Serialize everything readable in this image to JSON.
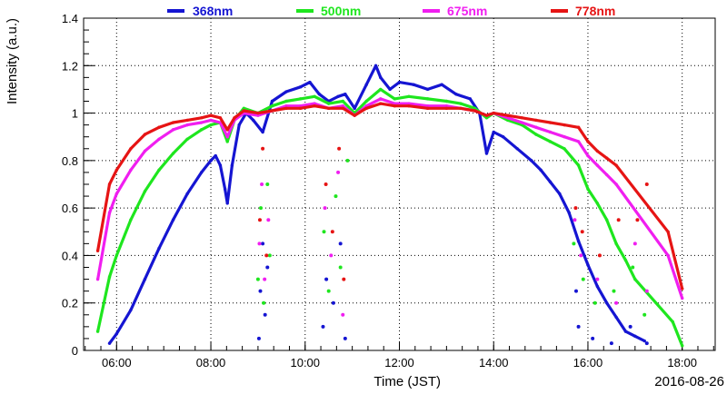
{
  "chart_data": {
    "type": "scatter",
    "title": "",
    "xlabel": "Time (JST)",
    "ylabel": "Intensity (a.u.)",
    "date_label": "2016-08-26",
    "x_unit": "hours (JST)",
    "xlim": [
      5.3,
      18.7
    ],
    "ylim": [
      0,
      1.4
    ],
    "x_ticks": [
      {
        "value": 6,
        "label": "06:00"
      },
      {
        "value": 8,
        "label": "08:00"
      },
      {
        "value": 10,
        "label": "10:00"
      },
      {
        "value": 12,
        "label": "12:00"
      },
      {
        "value": 14,
        "label": "14:00"
      },
      {
        "value": 16,
        "label": "16:00"
      },
      {
        "value": 18,
        "label": "18:00"
      }
    ],
    "y_ticks": [
      {
        "value": 0,
        "label": "0"
      },
      {
        "value": 0.2,
        "label": "0.2"
      },
      {
        "value": 0.4,
        "label": "0.4"
      },
      {
        "value": 0.6,
        "label": "0.6"
      },
      {
        "value": 0.8,
        "label": "0.8"
      },
      {
        "value": 1,
        "label": "1"
      },
      {
        "value": 1.2,
        "label": "1.2"
      },
      {
        "value": 1.4,
        "label": "1.4"
      }
    ],
    "grid": true,
    "legend_position": "top",
    "series": [
      {
        "name": "368nm",
        "color": "#1515d2",
        "points": [
          [
            5.85,
            0.03
          ],
          [
            6.0,
            0.07
          ],
          [
            6.3,
            0.17
          ],
          [
            6.6,
            0.3
          ],
          [
            6.9,
            0.43
          ],
          [
            7.2,
            0.55
          ],
          [
            7.5,
            0.66
          ],
          [
            7.8,
            0.75
          ],
          [
            8.0,
            0.8
          ],
          [
            8.1,
            0.82
          ],
          [
            8.2,
            0.78
          ],
          [
            8.3,
            0.68
          ],
          [
            8.35,
            0.62
          ],
          [
            8.45,
            0.78
          ],
          [
            8.6,
            0.95
          ],
          [
            8.75,
            1.0
          ],
          [
            8.9,
            0.97
          ],
          [
            9.1,
            0.92
          ],
          [
            9.3,
            1.05
          ],
          [
            9.6,
            1.09
          ],
          [
            9.9,
            1.11
          ],
          [
            10.1,
            1.13
          ],
          [
            10.3,
            1.08
          ],
          [
            10.5,
            1.05
          ],
          [
            10.7,
            1.07
          ],
          [
            10.85,
            1.08
          ],
          [
            11.05,
            1.02
          ],
          [
            11.3,
            1.12
          ],
          [
            11.5,
            1.2
          ],
          [
            11.6,
            1.15
          ],
          [
            11.8,
            1.1
          ],
          [
            12.0,
            1.13
          ],
          [
            12.3,
            1.12
          ],
          [
            12.6,
            1.1
          ],
          [
            12.9,
            1.12
          ],
          [
            13.2,
            1.08
          ],
          [
            13.5,
            1.06
          ],
          [
            13.7,
            1.0
          ],
          [
            13.85,
            0.83
          ],
          [
            14.0,
            0.92
          ],
          [
            14.2,
            0.9
          ],
          [
            14.5,
            0.85
          ],
          [
            14.8,
            0.8
          ],
          [
            15.0,
            0.76
          ],
          [
            15.2,
            0.71
          ],
          [
            15.4,
            0.66
          ],
          [
            15.6,
            0.58
          ],
          [
            15.8,
            0.46
          ],
          [
            16.0,
            0.36
          ],
          [
            16.2,
            0.27
          ],
          [
            16.4,
            0.2
          ],
          [
            16.6,
            0.14
          ],
          [
            16.8,
            0.08
          ],
          [
            17.0,
            0.06
          ],
          [
            17.2,
            0.04
          ]
        ]
      },
      {
        "name": "500nm",
        "color": "#1ee61e",
        "points": [
          [
            5.6,
            0.08
          ],
          [
            5.85,
            0.31
          ],
          [
            6.0,
            0.4
          ],
          [
            6.3,
            0.55
          ],
          [
            6.6,
            0.67
          ],
          [
            6.9,
            0.76
          ],
          [
            7.2,
            0.83
          ],
          [
            7.5,
            0.89
          ],
          [
            7.8,
            0.93
          ],
          [
            8.0,
            0.95
          ],
          [
            8.2,
            0.96
          ],
          [
            8.35,
            0.88
          ],
          [
            8.5,
            0.97
          ],
          [
            8.7,
            1.02
          ],
          [
            9.0,
            1.0
          ],
          [
            9.3,
            1.03
          ],
          [
            9.6,
            1.05
          ],
          [
            9.9,
            1.06
          ],
          [
            10.2,
            1.07
          ],
          [
            10.5,
            1.04
          ],
          [
            10.8,
            1.05
          ],
          [
            11.05,
            1.0
          ],
          [
            11.3,
            1.05
          ],
          [
            11.6,
            1.1
          ],
          [
            11.9,
            1.06
          ],
          [
            12.2,
            1.07
          ],
          [
            12.6,
            1.06
          ],
          [
            13.0,
            1.05
          ],
          [
            13.3,
            1.04
          ],
          [
            13.6,
            1.02
          ],
          [
            13.85,
            0.98
          ],
          [
            14.0,
            1.0
          ],
          [
            14.3,
            0.97
          ],
          [
            14.6,
            0.95
          ],
          [
            14.9,
            0.91
          ],
          [
            15.2,
            0.88
          ],
          [
            15.5,
            0.85
          ],
          [
            15.8,
            0.78
          ],
          [
            16.0,
            0.68
          ],
          [
            16.2,
            0.62
          ],
          [
            16.4,
            0.55
          ],
          [
            16.6,
            0.45
          ],
          [
            16.8,
            0.38
          ],
          [
            17.0,
            0.3
          ],
          [
            17.8,
            0.12
          ],
          [
            18.0,
            0.02
          ]
        ]
      },
      {
        "name": "675nm",
        "color": "#f01ef0",
        "points": [
          [
            5.6,
            0.3
          ],
          [
            5.85,
            0.58
          ],
          [
            6.0,
            0.66
          ],
          [
            6.3,
            0.76
          ],
          [
            6.6,
            0.84
          ],
          [
            6.9,
            0.89
          ],
          [
            7.2,
            0.93
          ],
          [
            7.5,
            0.95
          ],
          [
            7.8,
            0.96
          ],
          [
            8.0,
            0.97
          ],
          [
            8.2,
            0.96
          ],
          [
            8.35,
            0.9
          ],
          [
            8.5,
            0.97
          ],
          [
            8.7,
            1.0
          ],
          [
            9.0,
            0.99
          ],
          [
            9.3,
            1.01
          ],
          [
            9.6,
            1.03
          ],
          [
            9.9,
            1.03
          ],
          [
            10.2,
            1.04
          ],
          [
            10.5,
            1.02
          ],
          [
            10.8,
            1.03
          ],
          [
            11.05,
            0.99
          ],
          [
            11.3,
            1.03
          ],
          [
            11.6,
            1.06
          ],
          [
            11.9,
            1.04
          ],
          [
            12.2,
            1.04
          ],
          [
            12.6,
            1.03
          ],
          [
            13.0,
            1.03
          ],
          [
            13.3,
            1.02
          ],
          [
            13.6,
            1.01
          ],
          [
            13.85,
            0.99
          ],
          [
            14.0,
            1.0
          ],
          [
            14.3,
            0.98
          ],
          [
            14.6,
            0.96
          ],
          [
            14.9,
            0.94
          ],
          [
            15.2,
            0.92
          ],
          [
            15.5,
            0.9
          ],
          [
            15.8,
            0.88
          ],
          [
            16.0,
            0.82
          ],
          [
            16.2,
            0.78
          ],
          [
            16.4,
            0.74
          ],
          [
            16.6,
            0.7
          ],
          [
            17.7,
            0.4
          ],
          [
            18.0,
            0.22
          ]
        ]
      },
      {
        "name": "778nm",
        "color": "#e61414",
        "points": [
          [
            5.6,
            0.42
          ],
          [
            5.85,
            0.7
          ],
          [
            6.0,
            0.76
          ],
          [
            6.3,
            0.85
          ],
          [
            6.6,
            0.91
          ],
          [
            6.9,
            0.94
          ],
          [
            7.2,
            0.96
          ],
          [
            7.5,
            0.97
          ],
          [
            7.8,
            0.98
          ],
          [
            8.0,
            0.99
          ],
          [
            8.2,
            0.98
          ],
          [
            8.35,
            0.93
          ],
          [
            8.5,
            0.98
          ],
          [
            8.7,
            1.01
          ],
          [
            9.0,
            1.0
          ],
          [
            9.3,
            1.01
          ],
          [
            9.6,
            1.02
          ],
          [
            9.9,
            1.02
          ],
          [
            10.2,
            1.03
          ],
          [
            10.5,
            1.02
          ],
          [
            10.8,
            1.02
          ],
          [
            11.05,
            0.99
          ],
          [
            11.3,
            1.02
          ],
          [
            11.6,
            1.04
          ],
          [
            11.9,
            1.03
          ],
          [
            12.2,
            1.03
          ],
          [
            12.6,
            1.02
          ],
          [
            13.0,
            1.02
          ],
          [
            13.3,
            1.02
          ],
          [
            13.6,
            1.01
          ],
          [
            13.85,
            0.99
          ],
          [
            14.0,
            1.0
          ],
          [
            14.3,
            0.99
          ],
          [
            14.6,
            0.98
          ],
          [
            14.9,
            0.97
          ],
          [
            15.2,
            0.96
          ],
          [
            15.5,
            0.95
          ],
          [
            15.8,
            0.94
          ],
          [
            16.0,
            0.88
          ],
          [
            16.2,
            0.84
          ],
          [
            16.4,
            0.81
          ],
          [
            16.6,
            0.78
          ],
          [
            17.7,
            0.5
          ],
          [
            18.0,
            0.26
          ]
        ]
      }
    ],
    "scatter_dots": [
      {
        "series": "368nm",
        "points": [
          [
            9.02,
            0.05
          ],
          [
            9.05,
            0.25
          ],
          [
            9.1,
            0.45
          ],
          [
            9.15,
            0.15
          ],
          [
            9.2,
            0.35
          ],
          [
            10.38,
            0.1
          ],
          [
            10.45,
            0.3
          ],
          [
            10.6,
            0.2
          ],
          [
            10.75,
            0.45
          ],
          [
            10.85,
            0.05
          ],
          [
            15.75,
            0.25
          ],
          [
            15.8,
            0.1
          ],
          [
            16.1,
            0.05
          ],
          [
            16.5,
            0.03
          ],
          [
            16.9,
            0.1
          ],
          [
            17.25,
            0.03
          ]
        ]
      },
      {
        "series": "500nm",
        "points": [
          [
            9.0,
            0.3
          ],
          [
            9.06,
            0.6
          ],
          [
            9.12,
            0.2
          ],
          [
            9.2,
            0.7
          ],
          [
            9.25,
            0.4
          ],
          [
            10.4,
            0.5
          ],
          [
            10.5,
            0.25
          ],
          [
            10.65,
            0.65
          ],
          [
            10.75,
            0.35
          ],
          [
            10.9,
            0.8
          ],
          [
            15.7,
            0.45
          ],
          [
            15.9,
            0.3
          ],
          [
            16.15,
            0.2
          ],
          [
            16.55,
            0.25
          ],
          [
            16.95,
            0.35
          ],
          [
            17.2,
            0.15
          ]
        ]
      },
      {
        "series": "675nm",
        "points": [
          [
            9.03,
            0.45
          ],
          [
            9.08,
            0.7
          ],
          [
            9.14,
            0.3
          ],
          [
            9.22,
            0.55
          ],
          [
            10.42,
            0.6
          ],
          [
            10.55,
            0.4
          ],
          [
            10.7,
            0.75
          ],
          [
            10.8,
            0.15
          ],
          [
            15.72,
            0.55
          ],
          [
            15.85,
            0.4
          ],
          [
            16.2,
            0.3
          ],
          [
            16.6,
            0.2
          ],
          [
            17.0,
            0.45
          ],
          [
            17.25,
            0.25
          ]
        ]
      },
      {
        "series": "778nm",
        "points": [
          [
            9.04,
            0.55
          ],
          [
            9.1,
            0.85
          ],
          [
            9.18,
            0.4
          ],
          [
            10.44,
            0.7
          ],
          [
            10.58,
            0.5
          ],
          [
            10.72,
            0.85
          ],
          [
            10.82,
            0.3
          ],
          [
            15.74,
            0.6
          ],
          [
            15.88,
            0.5
          ],
          [
            16.25,
            0.4
          ],
          [
            16.65,
            0.55
          ],
          [
            17.05,
            0.55
          ],
          [
            17.25,
            0.7
          ]
        ]
      }
    ]
  }
}
